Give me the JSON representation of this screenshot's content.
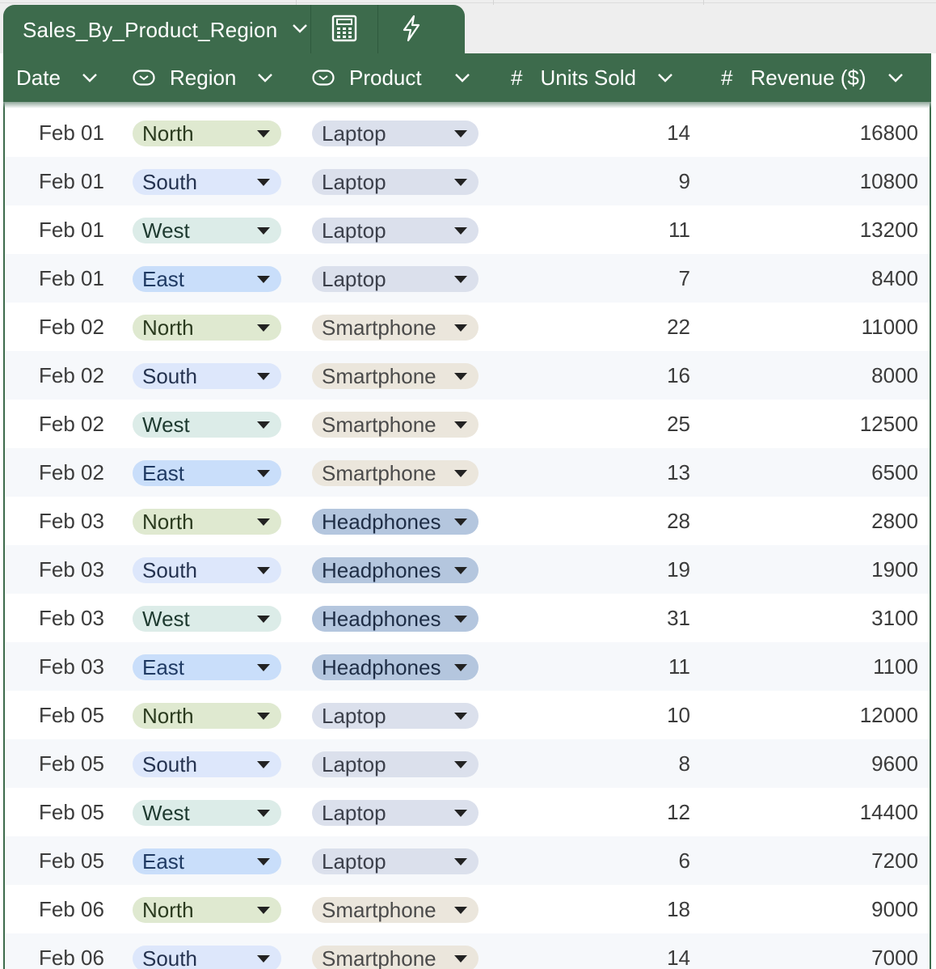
{
  "table": {
    "name": "Sales_By_Product_Region",
    "columns": [
      {
        "key": "date",
        "label": "Date",
        "type": "text"
      },
      {
        "key": "region",
        "label": "Region",
        "type": "dropdown"
      },
      {
        "key": "product",
        "label": "Product",
        "type": "dropdown"
      },
      {
        "key": "units",
        "label": "Units Sold",
        "type": "number"
      },
      {
        "key": "revenue",
        "label": "Revenue ($)",
        "type": "number"
      }
    ]
  },
  "icons": {
    "tab_chevron": "chevron-down-icon",
    "calc": "calculator-icon",
    "bolt": "lightning-icon",
    "dropdown_col": "dropdown-column-icon",
    "number_col": "hash-icon"
  },
  "colors": {
    "header": "#3d6b4c",
    "region": {
      "North": "#dfe9d0",
      "South": "#dde7fb",
      "West": "#dcece8",
      "East": "#c9defa"
    },
    "region_text": {
      "North": "#2a3a1e",
      "South": "#24324f",
      "West": "#1e3a30",
      "East": "#1f3a63"
    },
    "product": {
      "Laptop": "#dbe0ec",
      "Smartphone": "#ebe6dc",
      "Headphones": "#b4c6de"
    },
    "product_text": {
      "Laptop": "#3b3f4a",
      "Smartphone": "#4a4a4a",
      "Headphones": "#1e2d45"
    }
  },
  "rows": [
    {
      "date": "Feb 01",
      "region": "North",
      "product": "Laptop",
      "units": "14",
      "revenue": "16800"
    },
    {
      "date": "Feb 01",
      "region": "South",
      "product": "Laptop",
      "units": "9",
      "revenue": "10800"
    },
    {
      "date": "Feb 01",
      "region": "West",
      "product": "Laptop",
      "units": "11",
      "revenue": "13200"
    },
    {
      "date": "Feb 01",
      "region": "East",
      "product": "Laptop",
      "units": "7",
      "revenue": "8400"
    },
    {
      "date": "Feb 02",
      "region": "North",
      "product": "Smartphone",
      "units": "22",
      "revenue": "11000"
    },
    {
      "date": "Feb 02",
      "region": "South",
      "product": "Smartphone",
      "units": "16",
      "revenue": "8000"
    },
    {
      "date": "Feb 02",
      "region": "West",
      "product": "Smartphone",
      "units": "25",
      "revenue": "12500"
    },
    {
      "date": "Feb 02",
      "region": "East",
      "product": "Smartphone",
      "units": "13",
      "revenue": "6500"
    },
    {
      "date": "Feb 03",
      "region": "North",
      "product": "Headphones",
      "units": "28",
      "revenue": "2800"
    },
    {
      "date": "Feb 03",
      "region": "South",
      "product": "Headphones",
      "units": "19",
      "revenue": "1900"
    },
    {
      "date": "Feb 03",
      "region": "West",
      "product": "Headphones",
      "units": "31",
      "revenue": "3100"
    },
    {
      "date": "Feb 03",
      "region": "East",
      "product": "Headphones",
      "units": "11",
      "revenue": "1100"
    },
    {
      "date": "Feb 05",
      "region": "North",
      "product": "Laptop",
      "units": "10",
      "revenue": "12000"
    },
    {
      "date": "Feb 05",
      "region": "South",
      "product": "Laptop",
      "units": "8",
      "revenue": "9600"
    },
    {
      "date": "Feb 05",
      "region": "West",
      "product": "Laptop",
      "units": "12",
      "revenue": "14400"
    },
    {
      "date": "Feb 05",
      "region": "East",
      "product": "Laptop",
      "units": "6",
      "revenue": "7200"
    },
    {
      "date": "Feb 06",
      "region": "North",
      "product": "Smartphone",
      "units": "18",
      "revenue": "9000"
    },
    {
      "date": "Feb 06",
      "region": "South",
      "product": "Smartphone",
      "units": "14",
      "revenue": "7000"
    }
  ]
}
